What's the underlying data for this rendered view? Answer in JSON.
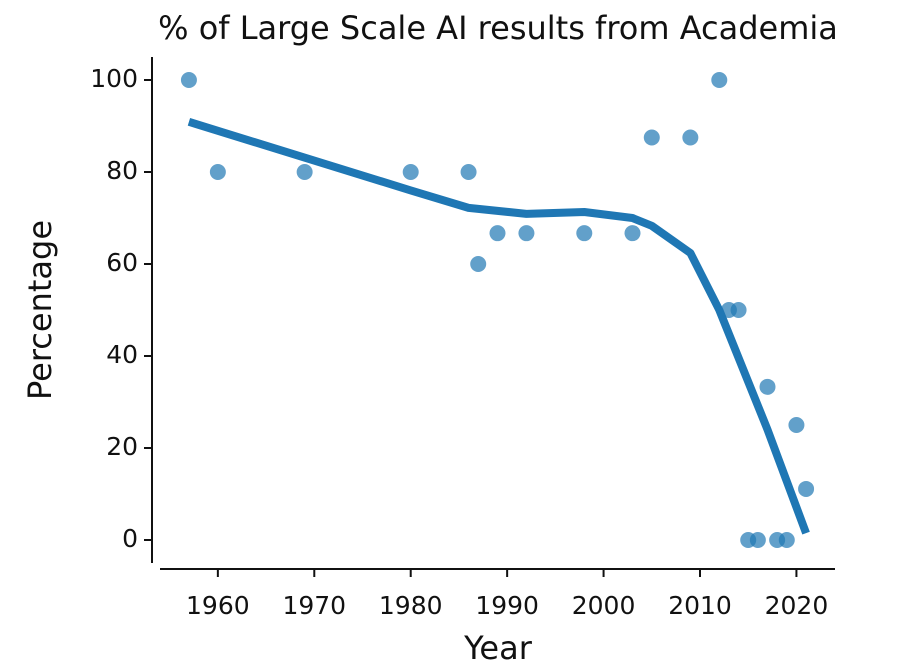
{
  "chart_data": {
    "type": "scatter",
    "title": "% of Large Scale AI results from Academia",
    "x_label": "Year",
    "y_label": "Percentage",
    "points": {
      "color": "#1f77b4",
      "x": [
        1957,
        1960,
        1969,
        1980,
        1986,
        1987,
        1989,
        1992,
        1998,
        2003,
        2005,
        2009,
        2012,
        2013,
        2014,
        2015,
        2016,
        2017,
        2018,
        2019,
        2020,
        2021
      ],
      "y": [
        100,
        80,
        80,
        80,
        80,
        60,
        66.7,
        66.7,
        66.7,
        66.7,
        87.5,
        87.5,
        100,
        50,
        50,
        0,
        0,
        33.3,
        0,
        0,
        25,
        11.1
      ]
    },
    "trend": {
      "color": "#1f77b4",
      "x": [
        1957,
        1980,
        1986,
        1992,
        1998,
        2003,
        2005,
        2009,
        2012,
        2017,
        2021
      ],
      "y": [
        90.9,
        76,
        72.2,
        70.9,
        71.3,
        70,
        68.3,
        62.4,
        50,
        24,
        1.5
      ]
    },
    "xlim": [
      1954,
      2024
    ],
    "xticks": [
      1960,
      1970,
      1980,
      1990,
      2000,
      2010,
      2020
    ],
    "ylim": [
      -5,
      105
    ],
    "yticks": [
      0,
      20,
      40,
      60,
      80,
      100
    ]
  }
}
